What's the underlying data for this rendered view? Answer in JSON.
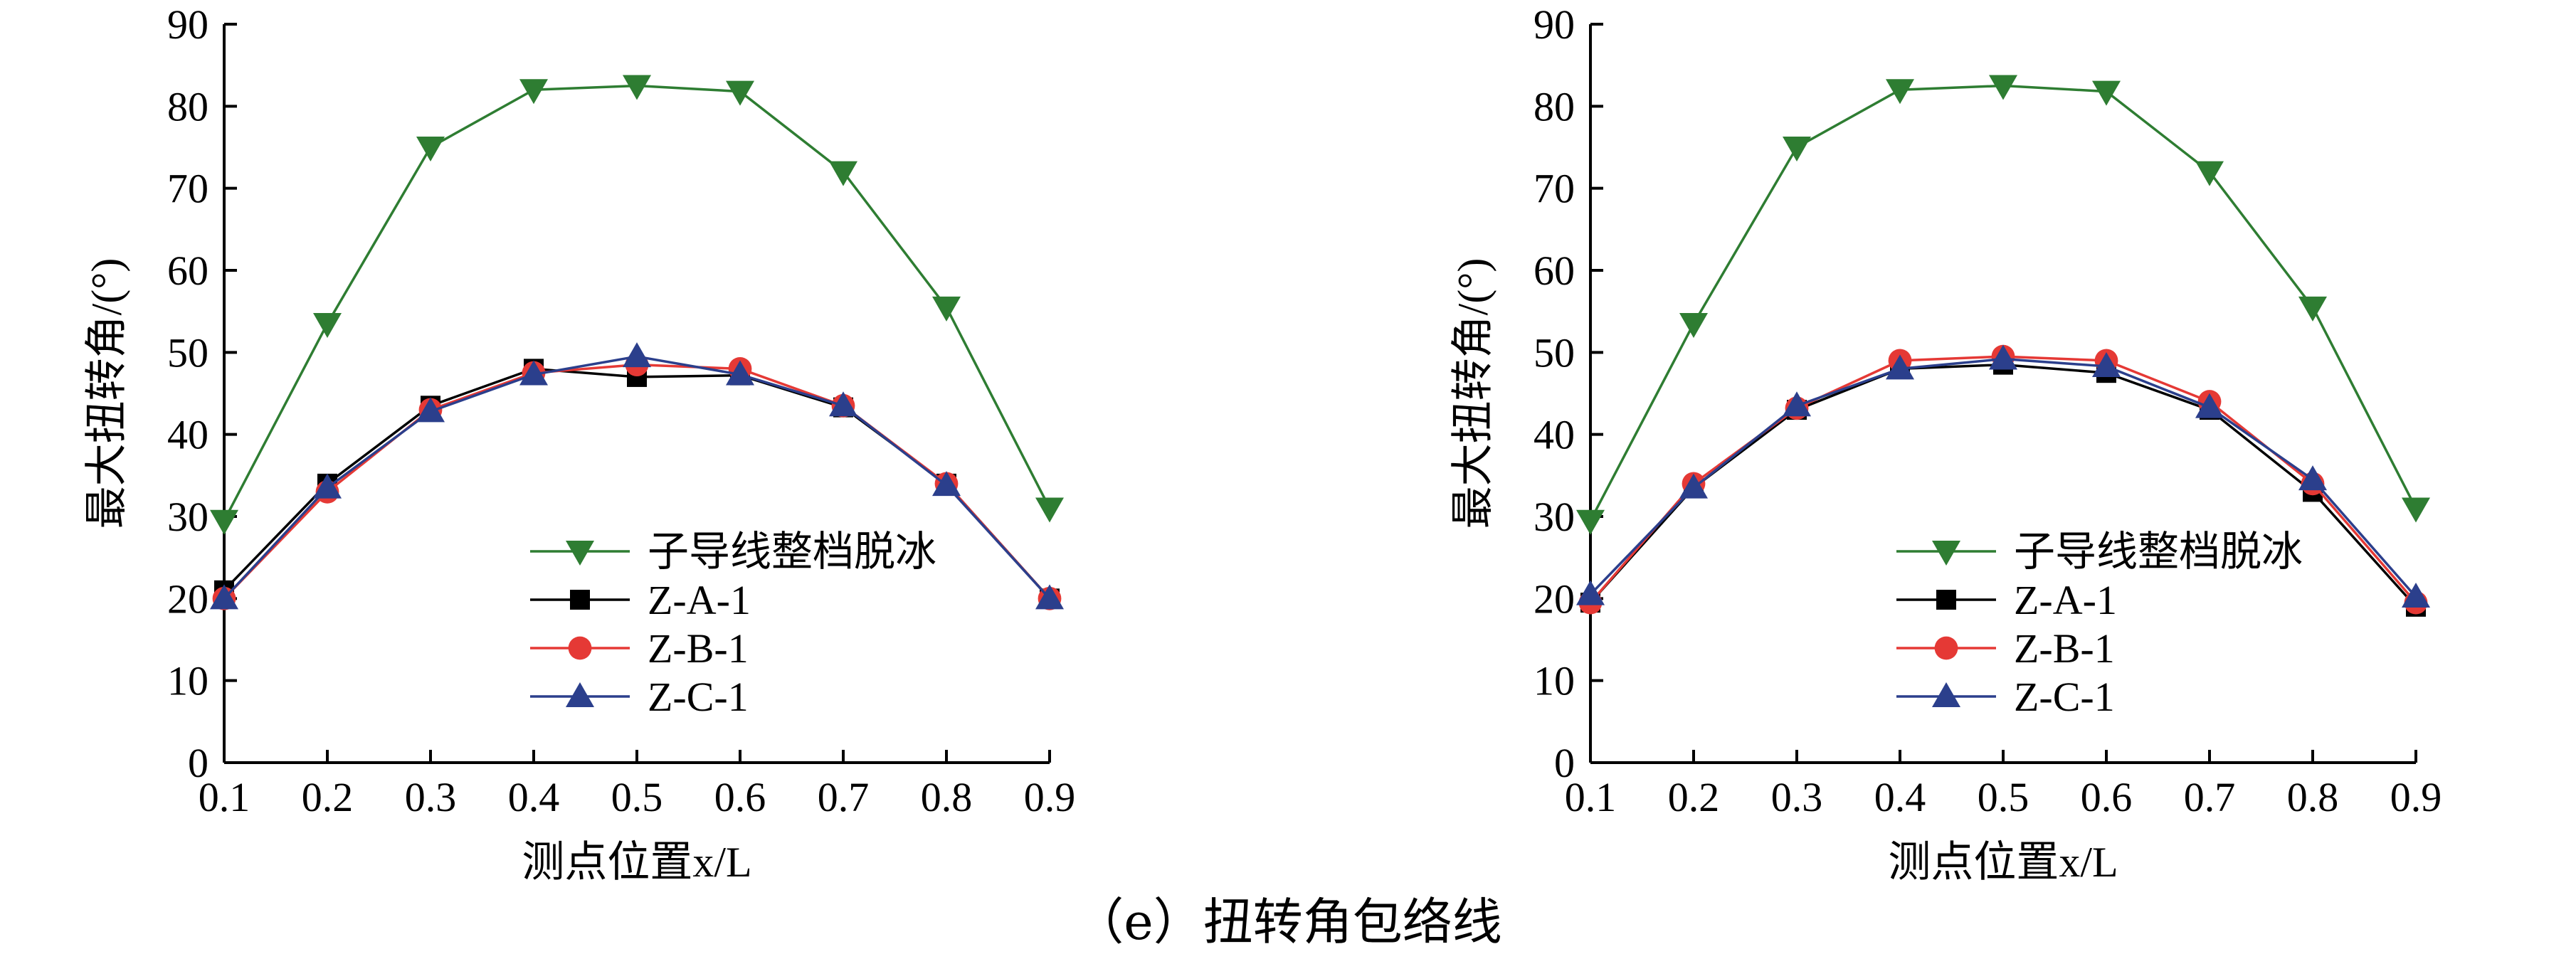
{
  "caption": "（e）扭转角包络线",
  "chart_data": [
    {
      "type": "line",
      "xlabel": "测点位置x/L",
      "ylabel": "最大扭转角/(°)",
      "xlim": [
        0.1,
        0.9
      ],
      "ylim": [
        0,
        90
      ],
      "xticks": [
        "0.1",
        "0.2",
        "0.3",
        "0.4",
        "0.5",
        "0.6",
        "0.7",
        "0.8",
        "0.9"
      ],
      "yticks": [
        "0",
        "10",
        "20",
        "30",
        "40",
        "50",
        "60",
        "70",
        "80",
        "90"
      ],
      "grid": false,
      "legend_position": "lower-center",
      "x": [
        0.1,
        0.2,
        0.3,
        0.4,
        0.5,
        0.6,
        0.7,
        0.8,
        0.9
      ],
      "series": [
        {
          "name": "子导线整档脱冰",
          "color": "#2e7d32",
          "marker": "triangle-down",
          "values": [
            29.5,
            53.5,
            75.0,
            82.0,
            82.5,
            81.8,
            72.0,
            55.5,
            31.0
          ]
        },
        {
          "name": "Z-A-1",
          "color": "#000000",
          "marker": "square",
          "values": [
            21.0,
            34.0,
            43.5,
            48.0,
            47.0,
            47.2,
            43.3,
            34.0,
            20.0
          ]
        },
        {
          "name": "Z-B-1",
          "color": "#e53935",
          "marker": "circle",
          "values": [
            20.0,
            33.0,
            43.0,
            47.5,
            48.5,
            48.0,
            43.5,
            34.0,
            20.0
          ]
        },
        {
          "name": "Z-C-1",
          "color": "#2b3f8c",
          "marker": "triangle-up",
          "values": [
            20.0,
            33.5,
            42.8,
            47.3,
            49.5,
            47.3,
            43.5,
            33.8,
            20.0
          ]
        }
      ]
    },
    {
      "type": "line",
      "xlabel": "测点位置x/L",
      "ylabel": "最大扭转角/(°)",
      "xlim": [
        0.1,
        0.9
      ],
      "ylim": [
        0,
        90
      ],
      "xticks": [
        "0.1",
        "0.2",
        "0.3",
        "0.4",
        "0.5",
        "0.6",
        "0.7",
        "0.8",
        "0.9"
      ],
      "yticks": [
        "0",
        "10",
        "20",
        "30",
        "40",
        "50",
        "60",
        "70",
        "80",
        "90"
      ],
      "grid": false,
      "legend_position": "lower-center",
      "x": [
        0.1,
        0.2,
        0.3,
        0.4,
        0.5,
        0.6,
        0.7,
        0.8,
        0.9
      ],
      "series": [
        {
          "name": "子导线整档脱冰",
          "color": "#2e7d32",
          "marker": "triangle-down",
          "values": [
            29.5,
            53.5,
            75.0,
            82.0,
            82.5,
            81.8,
            72.0,
            55.5,
            31.0
          ]
        },
        {
          "name": "Z-A-1",
          "color": "#000000",
          "marker": "square",
          "values": [
            19.5,
            33.5,
            43.0,
            48.0,
            48.5,
            47.5,
            43.0,
            33.0,
            19.0
          ]
        },
        {
          "name": "Z-B-1",
          "color": "#e53935",
          "marker": "circle",
          "values": [
            19.5,
            34.0,
            43.2,
            49.0,
            49.5,
            49.0,
            44.0,
            34.0,
            19.5
          ]
        },
        {
          "name": "Z-C-1",
          "color": "#2b3f8c",
          "marker": "triangle-up",
          "values": [
            20.5,
            33.5,
            43.5,
            48.0,
            49.2,
            48.3,
            43.3,
            34.5,
            20.2
          ]
        }
      ]
    }
  ]
}
